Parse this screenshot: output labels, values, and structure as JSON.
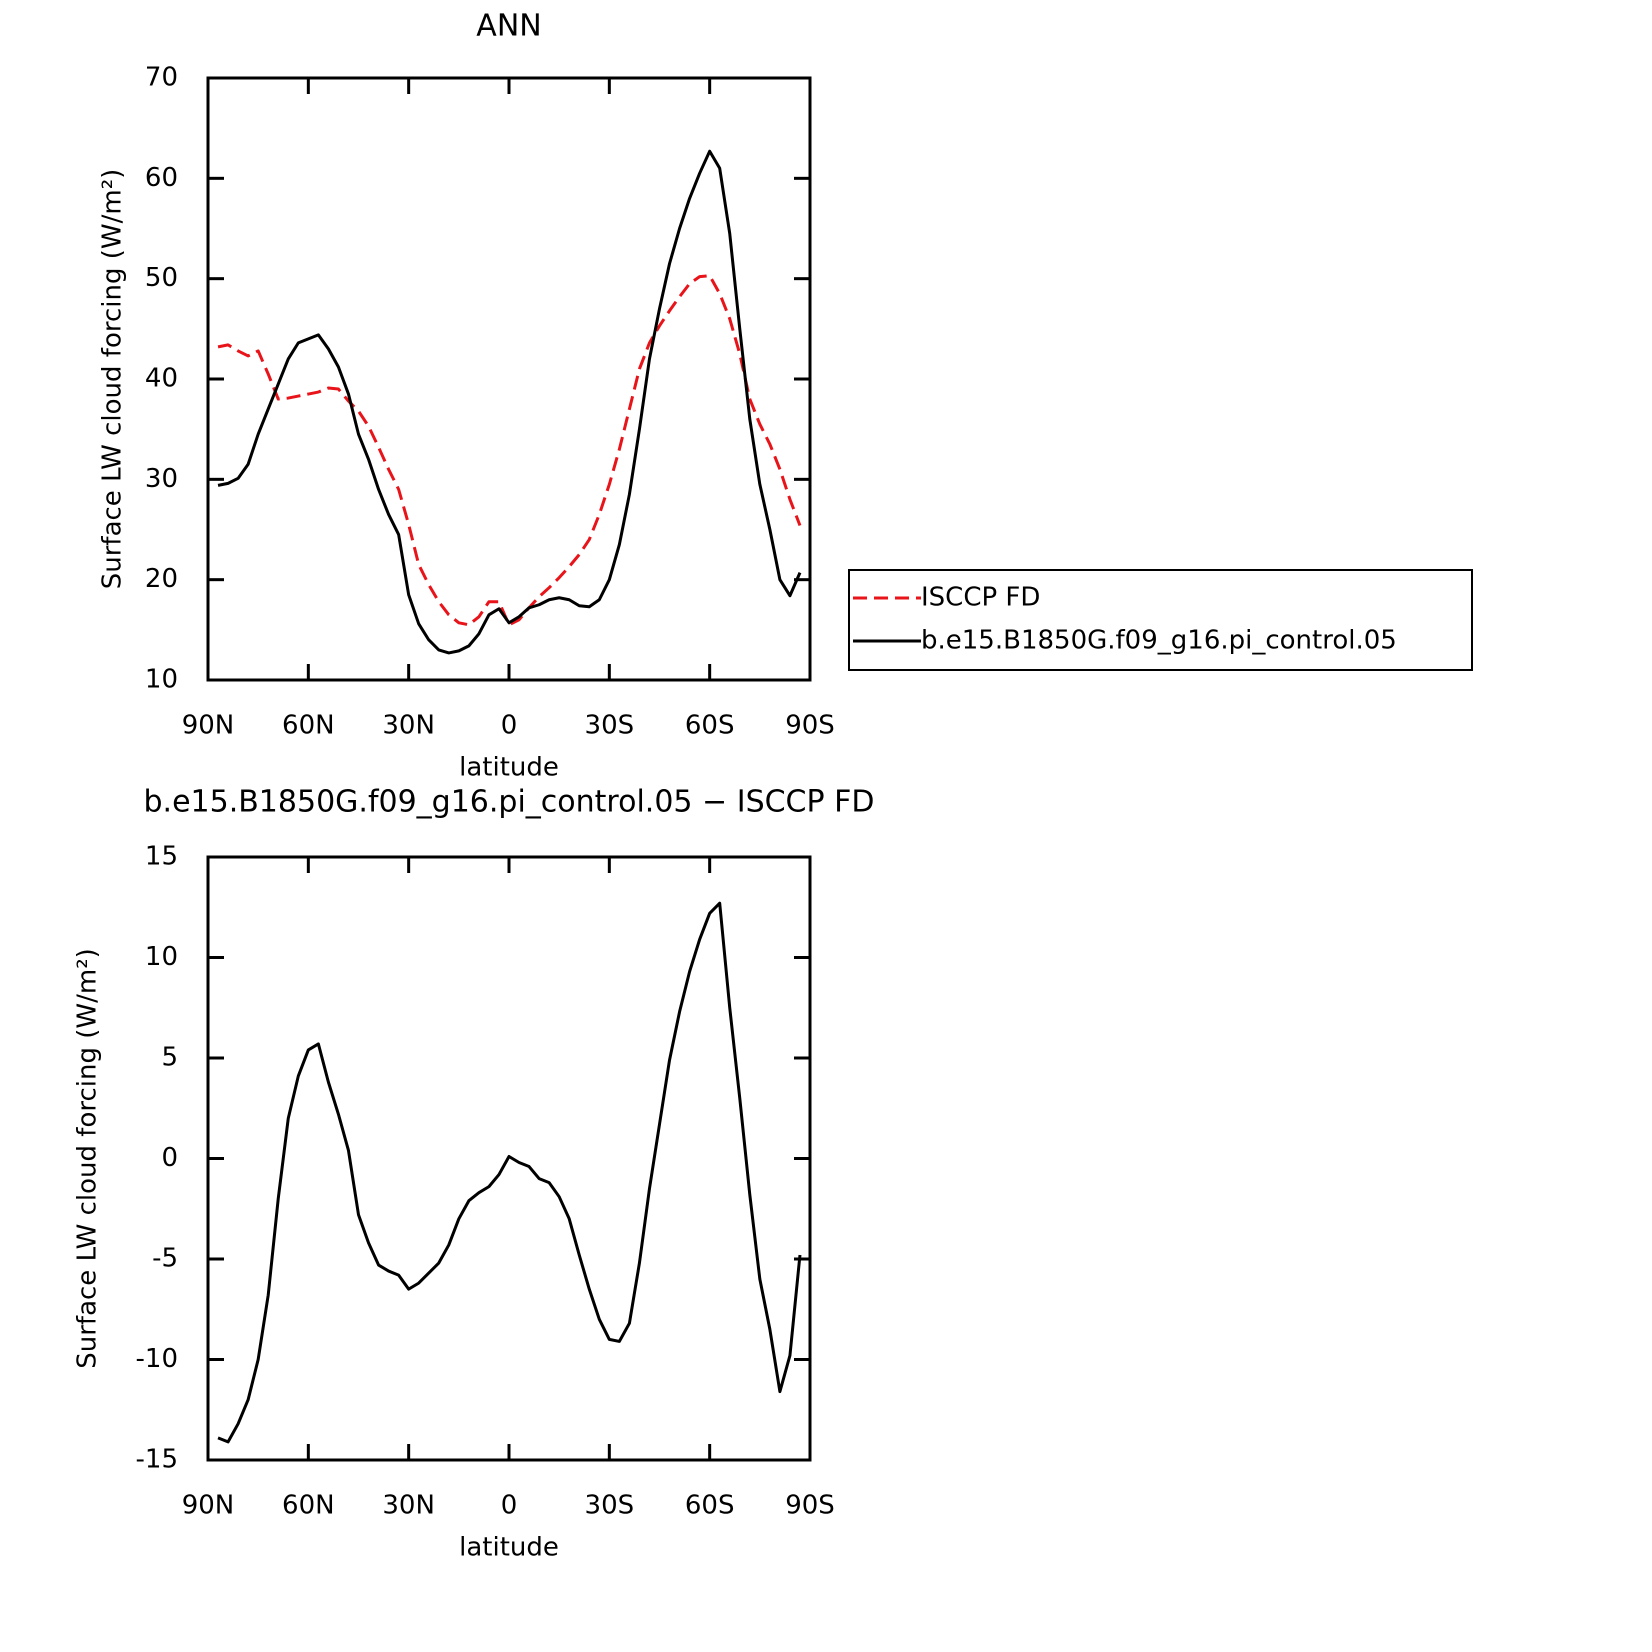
{
  "chart_data": [
    {
      "type": "line",
      "title": "ANN",
      "xlabel": "latitude",
      "ylabel": "Surface LW cloud forcing (W/m²)",
      "xlim": [
        90,
        -90
      ],
      "ylim": [
        10,
        70
      ],
      "xticks": [
        {
          "value": 90,
          "label": "90N"
        },
        {
          "value": 60,
          "label": "60N"
        },
        {
          "value": 30,
          "label": "30N"
        },
        0,
        {
          "value": -30,
          "label": "30S"
        },
        {
          "value": -60,
          "label": "60S"
        },
        {
          "value": -90,
          "label": "90S"
        }
      ],
      "yticks": [
        10,
        20,
        30,
        40,
        50,
        60,
        70
      ],
      "legend": "right",
      "x": [
        87,
        84,
        81,
        78,
        75,
        72,
        69,
        66,
        63,
        60,
        57,
        54,
        51,
        48,
        45,
        42,
        39,
        36,
        33,
        30,
        27,
        24,
        21,
        18,
        15,
        12,
        9,
        6,
        3,
        0,
        -3,
        -6,
        -9,
        -12,
        -15,
        -18,
        -21,
        -24,
        -27,
        -30,
        -33,
        -36,
        -39,
        -42,
        -45,
        -48,
        -51,
        -54,
        -57,
        -60,
        -63,
        -66,
        -69,
        -72,
        -75,
        -78,
        -81,
        -84,
        -87
      ],
      "series": [
        {
          "name": "ISCCP FD",
          "color": "#e8141a",
          "style": "dashed",
          "values": [
            43.2,
            43.4,
            42.8,
            42.3,
            42.8,
            40.5,
            38,
            38.1,
            38.3,
            38.5,
            38.7,
            39.1,
            39,
            37.8,
            36.8,
            35.3,
            33.2,
            31,
            29,
            25.5,
            21.5,
            19.5,
            17.8,
            16.5,
            15.7,
            15.5,
            16.3,
            17.8,
            17.8,
            15.5,
            16,
            17.2,
            18.3,
            19.2,
            20.2,
            21.3,
            22.5,
            24,
            26.5,
            29.5,
            33,
            37,
            41,
            43.6,
            45.3,
            46.8,
            48.2,
            49.5,
            50.2,
            50.3,
            48.5,
            46,
            42.5,
            38,
            35.5,
            33.5,
            31,
            28,
            25.4
          ]
        },
        {
          "name": "b.e15.B1850G.f09_g16.pi_control.05",
          "color": "#000000",
          "style": "solid",
          "values": [
            29.4,
            29.6,
            30.1,
            31.5,
            34.5,
            37,
            39.5,
            42,
            43.6,
            44,
            44.4,
            43,
            41.2,
            38.5,
            34.5,
            32,
            29,
            26.5,
            24.5,
            18.5,
            15.6,
            14,
            13,
            12.7,
            12.9,
            13.4,
            14.6,
            16.5,
            17.1,
            15.7,
            16.3,
            17.2,
            17.5,
            18,
            18.2,
            18,
            17.4,
            17.3,
            18,
            20,
            23.5,
            28.5,
            35,
            42,
            47,
            51.5,
            55,
            58,
            60.5,
            62.7,
            61,
            54.5,
            45,
            36,
            29.5,
            25,
            20,
            18.4,
            20.7
          ]
        }
      ]
    },
    {
      "type": "line",
      "title": "b.e15.B1850G.f09_g16.pi_control.05 − ISCCP FD",
      "xlabel": "latitude",
      "ylabel": "Surface LW cloud forcing (W/m²)",
      "xlim": [
        90,
        -90
      ],
      "ylim": [
        -15,
        15
      ],
      "xticks": [
        {
          "value": 90,
          "label": "90N"
        },
        {
          "value": 60,
          "label": "60N"
        },
        {
          "value": 30,
          "label": "30N"
        },
        0,
        {
          "value": -30,
          "label": "30S"
        },
        {
          "value": -60,
          "label": "60S"
        },
        {
          "value": -90,
          "label": "90S"
        }
      ],
      "yticks": [
        -15,
        -10,
        -5,
        0,
        5,
        10,
        15
      ],
      "x": [
        87,
        84,
        81,
        78,
        75,
        72,
        69,
        66,
        63,
        60,
        57,
        54,
        51,
        48,
        45,
        42,
        39,
        36,
        33,
        30,
        27,
        24,
        21,
        18,
        15,
        12,
        9,
        6,
        3,
        0,
        -3,
        -6,
        -9,
        -12,
        -15,
        -18,
        -21,
        -24,
        -27,
        -30,
        -33,
        -36,
        -39,
        -42,
        -45,
        -48,
        -51,
        -54,
        -57,
        -60,
        -63,
        -66,
        -69,
        -72,
        -75,
        -78,
        -81,
        -84,
        -87
      ],
      "series": [
        {
          "color": "#000000",
          "style": "solid",
          "values": [
            -13.9,
            -14.1,
            -13.2,
            -12,
            -10,
            -6.8,
            -2,
            2,
            4.1,
            5.4,
            5.7,
            3.8,
            2.2,
            0.4,
            -2.8,
            -4.2,
            -5.3,
            -5.6,
            -5.8,
            -6.5,
            -6.2,
            -5.7,
            -5.2,
            -4.3,
            -3,
            -2.1,
            -1.7,
            -1.4,
            -0.8,
            0.1,
            -0.2,
            -0.4,
            -1,
            -1.2,
            -1.9,
            -3,
            -4.8,
            -6.5,
            -8,
            -9,
            -9.1,
            -8.2,
            -5.2,
            -1.5,
            1.7,
            4.9,
            7.3,
            9.3,
            10.9,
            12.2,
            12.7,
            7.5,
            3,
            -1.8,
            -6,
            -8.5,
            -11.6,
            -9.8,
            -4.8
          ]
        }
      ]
    }
  ]
}
